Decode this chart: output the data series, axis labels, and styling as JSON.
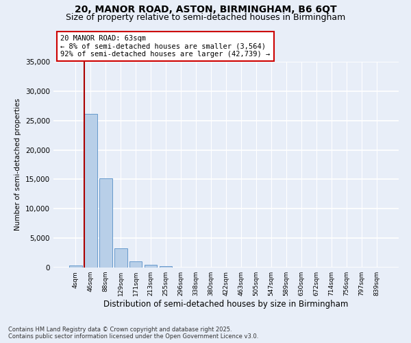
{
  "title1": "20, MANOR ROAD, ASTON, BIRMINGHAM, B6 6QT",
  "title2": "Size of property relative to semi-detached houses in Birmingham",
  "xlabel": "Distribution of semi-detached houses by size in Birmingham",
  "ylabel": "Number of semi-detached properties",
  "categories": [
    "4sqm",
    "46sqm",
    "88sqm",
    "129sqm",
    "171sqm",
    "213sqm",
    "255sqm",
    "296sqm",
    "338sqm",
    "380sqm",
    "422sqm",
    "463sqm",
    "505sqm",
    "547sqm",
    "589sqm",
    "630sqm",
    "672sqm",
    "714sqm",
    "756sqm",
    "797sqm",
    "839sqm"
  ],
  "bar_heights": [
    400,
    26100,
    15200,
    3300,
    1100,
    500,
    270,
    0,
    0,
    0,
    0,
    0,
    0,
    0,
    0,
    0,
    0,
    0,
    0,
    0,
    0
  ],
  "bar_color": "#b8cfe8",
  "bar_edge_color": "#6699cc",
  "vline_color": "#aa0000",
  "annotation_title": "20 MANOR ROAD: 63sqm",
  "annotation_line1": "← 8% of semi-detached houses are smaller (3,564)",
  "annotation_line2": "92% of semi-detached houses are larger (42,739) →",
  "ylim": [
    0,
    35000
  ],
  "yticks": [
    0,
    5000,
    10000,
    15000,
    20000,
    25000,
    30000,
    35000
  ],
  "bg_color": "#e8eef8",
  "plot_bg_color": "#e8eef8",
  "footer1": "Contains HM Land Registry data © Crown copyright and database right 2025.",
  "footer2": "Contains public sector information licensed under the Open Government Licence v3.0.",
  "title_fontsize": 10,
  "subtitle_fontsize": 9,
  "annotation_box_color": "#ffffff",
  "annotation_box_edge": "#cc0000"
}
